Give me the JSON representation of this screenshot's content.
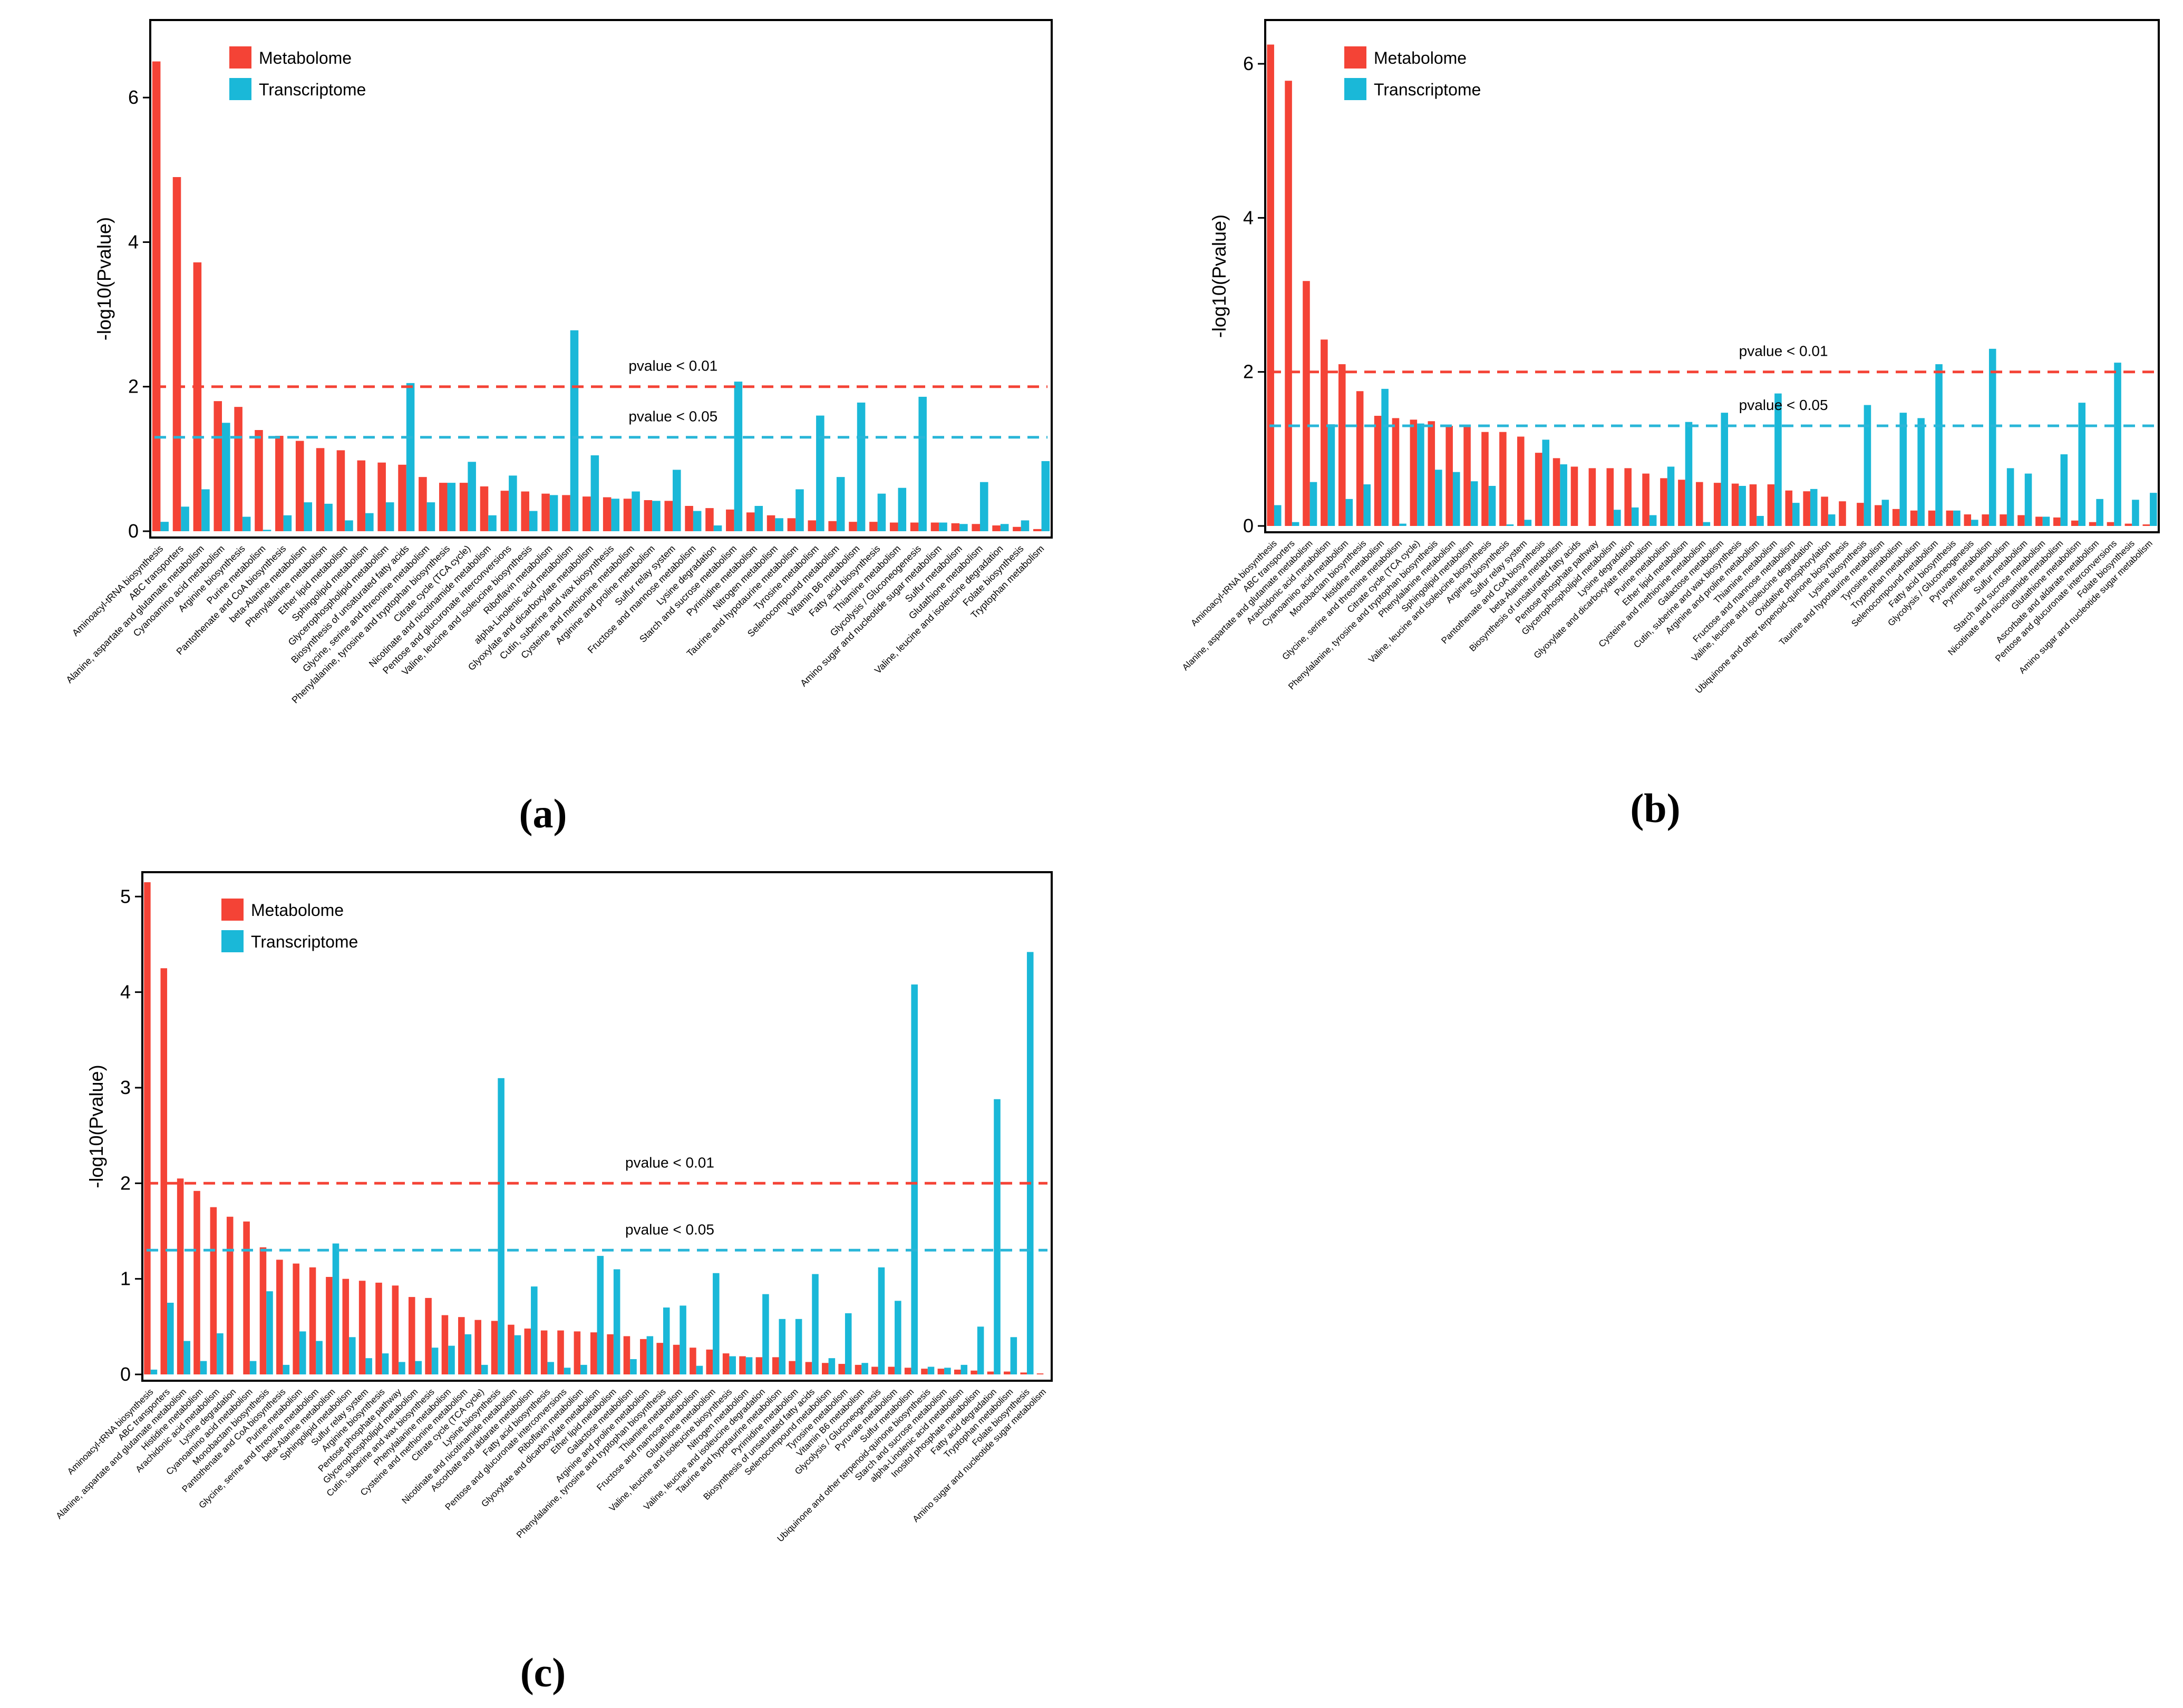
{
  "colors": {
    "metabolome": "#f44336",
    "transcriptome": "#1ab8d8",
    "threshold01": "#f44336",
    "threshold05": "#29b6d8"
  },
  "chart_data": [
    {
      "type": "bar",
      "panel_label": "(a)",
      "ylabel": "-log10(Pvalue)",
      "xlabel": "",
      "ylim": [
        0,
        7.0
      ],
      "yticks": [
        0,
        2,
        4,
        6
      ],
      "legend": [
        "Metabolome",
        "Transcriptome"
      ],
      "legend_position": "top-left",
      "thresholds": [
        {
          "label": "pvalue < 0.01",
          "value": 2.0
        },
        {
          "label": "pvalue < 0.05",
          "value": 1.3
        }
      ],
      "categories": [
        "Aminoacyl-tRNA biosynthesis",
        "ABC transporters",
        "Alanine, aspartate and glutamate metabolism",
        "Cyanoamino acid metabolism",
        "Arginine biosynthesis",
        "Purine metabolism",
        "Pantothenate and CoA biosynthesis",
        "beta-Alanine metabolism",
        "Phenylalanine metabolism",
        "Ether lipid metabolism",
        "Sphingolipid metabolism",
        "Glycerophospholipid metabolism",
        "Biosynthesis of unsaturated fatty acids",
        "Glycine, serine and threonine metabolism",
        "Phenylalanine, tyrosine and tryptophan biosynthesis",
        "Citrate cycle (TCA cycle)",
        "Nicotinate and nicotinamide metabolism",
        "Pentose and glucuronate interconversions",
        "Valine, leucine and isoleucine biosynthesis",
        "Riboflavin metabolism",
        "alpha-Linolenic acid metabolism",
        "Glyoxylate and dicarboxylate metabolism",
        "Cutin, suberine and wax biosynthesis",
        "Cysteine and methionine metabolism",
        "Arginine and proline metabolism",
        "Sulfur relay system",
        "Fructose and mannose metabolism",
        "Lysine degradation",
        "Starch and sucrose metabolism",
        "Pyrimidine metabolism",
        "Nitrogen metabolism",
        "Taurine and hypotaurine metabolism",
        "Tyrosine metabolism",
        "Selenocompound metabolism",
        "Vitamin B6 metabolism",
        "Fatty acid biosynthesis",
        "Thiamine metabolism",
        "Glycolysis / Gluconeogenesis",
        "Amino sugar and nucleotide sugar metabolism",
        "Sulfur metabolism",
        "Glutathione metabolism",
        "Valine, leucine and isoleucine degradation",
        "Folate biosynthesis",
        "Tryptophan metabolism"
      ],
      "series": [
        {
          "name": "Metabolome",
          "values": [
            6.5,
            4.9,
            3.72,
            1.8,
            1.72,
            1.4,
            1.32,
            1.25,
            1.15,
            1.12,
            0.98,
            0.95,
            0.92,
            0.75,
            0.67,
            0.67,
            0.62,
            0.56,
            0.55,
            0.52,
            0.5,
            0.48,
            0.47,
            0.45,
            0.43,
            0.42,
            0.35,
            0.32,
            0.3,
            0.26,
            0.22,
            0.18,
            0.15,
            0.14,
            0.13,
            0.13,
            0.12,
            0.12,
            0.12,
            0.11,
            0.1,
            0.08,
            0.06,
            0.03
          ]
        },
        {
          "name": "Transcriptome",
          "values": [
            0.13,
            0.34,
            0.58,
            1.5,
            0.2,
            0.02,
            0.22,
            0.4,
            0.38,
            0.15,
            0.25,
            0.4,
            2.05,
            0.4,
            0.67,
            0.96,
            0.22,
            0.77,
            0.28,
            0.5,
            2.78,
            1.05,
            0.45,
            0.55,
            0.42,
            0.85,
            0.28,
            0.08,
            2.07,
            0.35,
            0.18,
            0.58,
            1.6,
            0.75,
            1.78,
            0.52,
            0.6,
            1.86,
            0.12,
            0.1,
            0.68,
            0.1,
            0.15,
            0.97
          ]
        }
      ]
    },
    {
      "type": "bar",
      "panel_label": "(b)",
      "ylabel": "-log10(Pvalue)",
      "xlabel": "",
      "ylim": [
        0,
        6.5
      ],
      "yticks": [
        0,
        2,
        4,
        6
      ],
      "legend": [
        "Metabolome",
        "Transcriptome"
      ],
      "legend_position": "top-left",
      "thresholds": [
        {
          "label": "pvalue < 0.01",
          "value": 2.0
        },
        {
          "label": "pvalue < 0.05",
          "value": 1.3
        }
      ],
      "categories": [
        "Aminoacyl-tRNA biosynthesis",
        "ABC transporters",
        "Alanine, aspartate and glutamate metabolism",
        "Arachidonic acid metabolism",
        "Cyanoamino acid metabolism",
        "Monobactam biosynthesis",
        "Histidine metabolism",
        "Glycine, serine and threonine metabolism",
        "Citrate cycle (TCA cycle)",
        "Phenylalanine, tyrosine and tryptophan biosynthesis",
        "Phenylalanine metabolism",
        "Sphingolipid metabolism",
        "Valine, leucine and isoleucine biosynthesis",
        "Arginine biosynthesis",
        "Sulfur relay system",
        "Pantothenate and CoA biosynthesis",
        "beta-Alanine metabolism",
        "Biosynthesis of unsaturated fatty acids",
        "Pentose phosphate pathway",
        "Glycerophospholipid metabolism",
        "Lysine degradation",
        "Glyoxylate and dicarboxylate metabolism",
        "Purine metabolism",
        "Ether lipid metabolism",
        "Cysteine and methionine metabolism",
        "Galactose metabolism",
        "Cutin, suberine and wax biosynthesis",
        "Arginine and proline metabolism",
        "Thiamine metabolism",
        "Fructose and mannose metabolism",
        "Valine, leucine and isoleucine degradation",
        "Oxidative phosphorylation",
        "Ubiquinone and other terpenoid-quinone biosynthesis",
        "Lysine biosynthesis",
        "Taurine and hypotaurine metabolism",
        "Tyrosine metabolism",
        "Tryptophan metabolism",
        "Selenocompound metabolism",
        "Fatty acid biosynthesis",
        "Glycolysis / Gluconeogenesis",
        "Pyruvate metabolism",
        "Pyrimidine metabolism",
        "Sulfur metabolism",
        "Starch and sucrose metabolism",
        "Nicotinate and nicotinamide metabolism",
        "Glutathione metabolism",
        "Ascorbate and aldarate metabolism",
        "Pentose and glucuronate interconversions",
        "Folate biosynthesis",
        "Amino sugar and nucleotide sugar metabolism"
      ],
      "series": [
        {
          "name": "Metabolome",
          "values": [
            6.25,
            5.78,
            3.18,
            2.42,
            2.1,
            1.75,
            1.43,
            1.4,
            1.38,
            1.36,
            1.3,
            1.3,
            1.22,
            1.22,
            1.16,
            0.95,
            0.88,
            0.77,
            0.75,
            0.75,
            0.75,
            0.68,
            0.62,
            0.6,
            0.57,
            0.56,
            0.55,
            0.54,
            0.54,
            0.46,
            0.45,
            0.38,
            0.32,
            0.3,
            0.27,
            0.22,
            0.2,
            0.2,
            0.2,
            0.15,
            0.15,
            0.15,
            0.14,
            0.12,
            0.11,
            0.07,
            0.05,
            0.05,
            0.03,
            0.02
          ]
        },
        {
          "name": "Transcriptome",
          "values": [
            0.27,
            0.05,
            0.57,
            1.32,
            0.35,
            0.54,
            1.78,
            0.03,
            1.33,
            0.73,
            0.7,
            0.58,
            0.52,
            0.02,
            0.08,
            1.12,
            0.8,
            0.0,
            0.0,
            0.21,
            0.24,
            0.14,
            0.77,
            1.35,
            0.05,
            1.47,
            0.52,
            0.13,
            1.72,
            0.3,
            0.48,
            0.15,
            0.0,
            1.57,
            0.34,
            1.47,
            1.4,
            2.1,
            0.2,
            0.08,
            2.3,
            0.75,
            0.68,
            0.12,
            0.93,
            1.6,
            0.35,
            2.12,
            0.34,
            0.43
          ]
        }
      ]
    },
    {
      "type": "bar",
      "panel_label": "(c)",
      "ylabel": "-log10(Pvalue)",
      "xlabel": "",
      "ylim": [
        0,
        5.2
      ],
      "yticks": [
        0,
        1,
        2,
        3,
        4,
        5
      ],
      "legend": [
        "Metabolome",
        "Transcriptome"
      ],
      "legend_position": "top-left",
      "thresholds": [
        {
          "label": "pvalue < 0.01",
          "value": 2.0
        },
        {
          "label": "pvalue < 0.05",
          "value": 1.3
        }
      ],
      "categories": [
        "Aminoacyl-tRNA biosynthesis",
        "ABC transporters",
        "Alanine, aspartate and glutamate metabolism",
        "Histidine metabolism",
        "Arachidonic acid metabolism",
        "Lysine degradation",
        "Cyanoamino acid metabolism",
        "Monobactam biosynthesis",
        "Pantothenate and CoA biosynthesis",
        "Purine metabolism",
        "Glycine, serine and threonine metabolism",
        "beta-Alanine metabolism",
        "Sphingolipid metabolism",
        "Sulfur relay system",
        "Arginine biosynthesis",
        "Pentose phosphate pathway",
        "Glycerophospholipid metabolism",
        "Cutin, suberine and wax biosynthesis",
        "Phenylalanine metabolism",
        "Cysteine and methionine metabolism",
        "Citrate cycle (TCA cycle)",
        "Lysine biosynthesis",
        "Nicotinate and nicotinamide metabolism",
        "Ascorbate and aldarate metabolism",
        "Fatty acid biosynthesis",
        "Pentose and glucuronate interconversions",
        "Riboflavin metabolism",
        "Glyoxylate and dicarboxylate metabolism",
        "Ether lipid metabolism",
        "Galactose metabolism",
        "Arginine and proline metabolism",
        "Phenylalanine, tyrosine and tryptophan biosynthesis",
        "Thiamine metabolism",
        "Fructose and mannose metabolism",
        "Glutathione metabolism",
        "Valine, leucine and isoleucine biosynthesis",
        "Nitrogen metabolism",
        "Valine, leucine and isoleucine degradation",
        "Taurine and hypotaurine metabolism",
        "Pyrimidine metabolism",
        "Biosynthesis of unsaturated fatty acids",
        "Selenocompound metabolism",
        "Tyrosine metabolism",
        "Vitamin B6 metabolism",
        "Glycolysis / Gluconeogenesis",
        "Pyruvate metabolism",
        "Sulfur metabolism",
        "Ubiquinone and other terpenoid-quinone biosynthesis",
        "Starch and sucrose metabolism",
        "alpha-Linolenic acid metabolism",
        "Inositol phosphate metabolism",
        "Fatty acid degradation",
        "Tryptophan metabolism",
        "Folate biosynthesis",
        "Amino sugar and nucleotide sugar metabolism"
      ],
      "series": [
        {
          "name": "Metabolome",
          "values": [
            5.15,
            4.25,
            2.05,
            1.92,
            1.75,
            1.65,
            1.6,
            1.33,
            1.2,
            1.16,
            1.12,
            1.02,
            1.0,
            0.98,
            0.96,
            0.93,
            0.81,
            0.8,
            0.62,
            0.6,
            0.57,
            0.56,
            0.52,
            0.48,
            0.46,
            0.46,
            0.45,
            0.44,
            0.42,
            0.4,
            0.37,
            0.33,
            0.31,
            0.28,
            0.26,
            0.22,
            0.19,
            0.18,
            0.18,
            0.14,
            0.13,
            0.12,
            0.11,
            0.1,
            0.08,
            0.08,
            0.07,
            0.06,
            0.06,
            0.05,
            0.04,
            0.03,
            0.03,
            0.02,
            0.01
          ]
        },
        {
          "name": "Transcriptome",
          "values": [
            0.05,
            0.75,
            0.35,
            0.14,
            0.43,
            0.0,
            0.14,
            0.87,
            0.1,
            0.45,
            0.35,
            1.37,
            0.39,
            0.17,
            0.22,
            0.13,
            0.14,
            0.28,
            0.3,
            0.42,
            0.1,
            3.1,
            0.41,
            0.92,
            0.13,
            0.07,
            0.1,
            1.24,
            1.1,
            0.16,
            0.4,
            0.7,
            0.72,
            0.09,
            1.06,
            0.19,
            0.18,
            0.84,
            0.58,
            0.58,
            1.05,
            0.17,
            0.64,
            0.12,
            1.12,
            0.77,
            4.08,
            0.08,
            0.07,
            0.1,
            0.5,
            2.88,
            0.39,
            4.42,
            0.0
          ]
        }
      ]
    }
  ]
}
